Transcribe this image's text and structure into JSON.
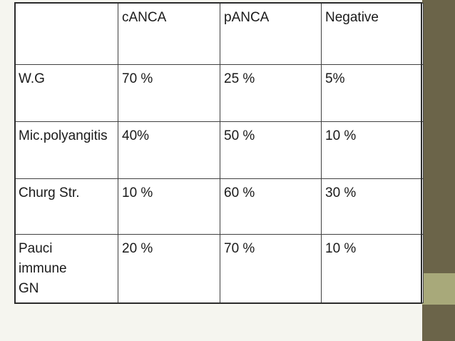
{
  "theme": {
    "background": "#f5f5ef",
    "band_dark": "#6b6449",
    "band_light": "#a8a97a",
    "table_bg": "#ffffff",
    "border": "#404040"
  },
  "table": {
    "headers": [
      "",
      "cANCA",
      "pANCA",
      "Negative"
    ],
    "rows": [
      {
        "label": "W.G",
        "values": [
          "70 %",
          "25 %",
          "5%"
        ]
      },
      {
        "label": "Mic.polyangitis",
        "values": [
          "40%",
          "50 %",
          "10 %"
        ]
      },
      {
        "label": "Churg Str.",
        "values": [
          "10 %",
          "60 %",
          "30 %"
        ]
      },
      {
        "label": "Pauci immune GN",
        "values": [
          "20 %",
          "70 %",
          "10 %"
        ]
      }
    ]
  }
}
